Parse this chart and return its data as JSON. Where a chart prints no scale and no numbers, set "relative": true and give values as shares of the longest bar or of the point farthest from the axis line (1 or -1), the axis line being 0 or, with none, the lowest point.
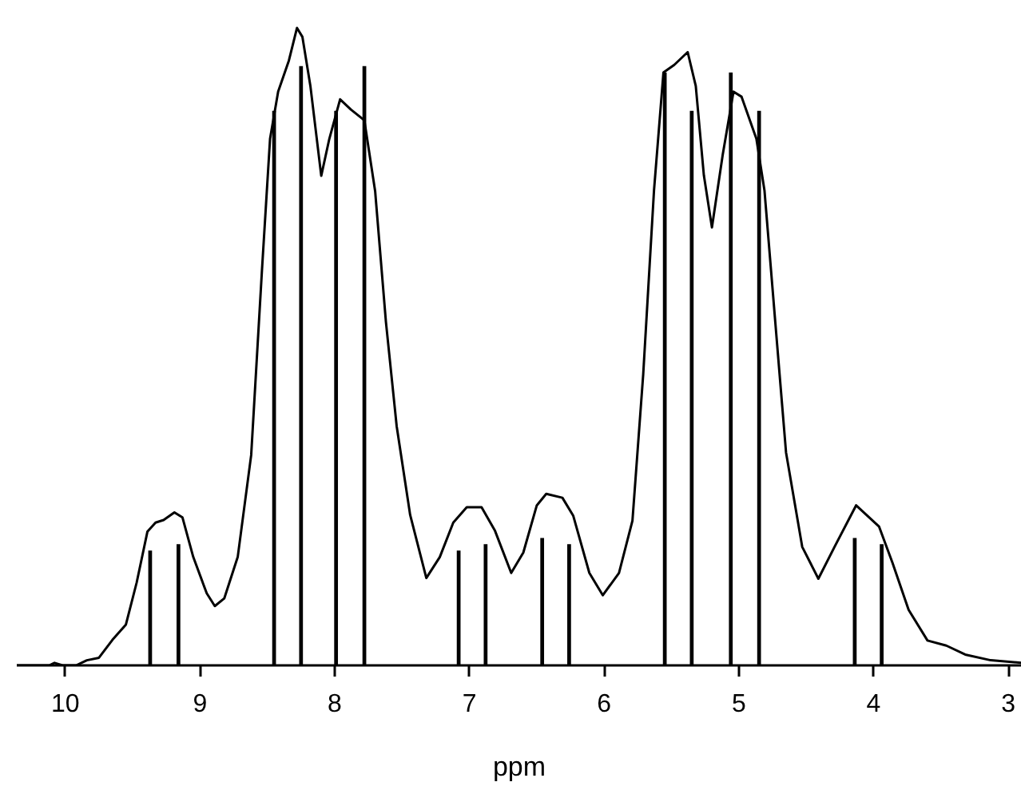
{
  "chart_data": {
    "type": "line",
    "relative": true,
    "xlabel": "ppm",
    "xlim": [
      10.36,
      2.9
    ],
    "xticks": [
      10,
      9,
      8,
      7,
      6,
      5,
      4,
      3
    ],
    "grid": false,
    "series": [
      {
        "color": "#000000",
        "x": [
          10.36,
          10.12,
          10.08,
          10.02,
          9.92,
          9.84,
          9.75,
          9.65,
          9.55,
          9.47,
          9.39,
          9.33,
          9.27,
          9.19,
          9.13,
          9.05,
          8.95,
          8.89,
          8.82,
          8.72,
          8.62,
          8.54,
          8.48,
          8.42,
          8.34,
          8.28,
          8.24,
          8.18,
          8.1,
          8.04,
          7.96,
          7.88,
          7.78,
          7.7,
          7.62,
          7.54,
          7.44,
          7.32,
          7.22,
          7.12,
          7.02,
          6.91,
          6.81,
          6.69,
          6.6,
          6.5,
          6.43,
          6.31,
          6.23,
          6.11,
          6.01,
          5.89,
          5.79,
          5.71,
          5.63,
          5.56,
          5.48,
          5.38,
          5.32,
          5.26,
          5.2,
          5.12,
          5.04,
          4.98,
          4.87,
          4.81,
          4.73,
          4.65,
          4.53,
          4.41,
          4.29,
          4.13,
          3.96,
          3.86,
          3.74,
          3.6,
          3.46,
          3.32,
          3.13,
          2.9
        ],
        "values": [
          0,
          0,
          0.004,
          0,
          0,
          0.008,
          0.012,
          0.04,
          0.064,
          0.13,
          0.21,
          0.224,
          0.228,
          0.24,
          0.232,
          0.17,
          0.113,
          0.093,
          0.105,
          0.17,
          0.33,
          0.62,
          0.826,
          0.9,
          0.949,
          1.0,
          0.986,
          0.908,
          0.768,
          0.826,
          0.888,
          0.872,
          0.855,
          0.744,
          0.539,
          0.375,
          0.236,
          0.137,
          0.17,
          0.224,
          0.248,
          0.248,
          0.211,
          0.145,
          0.177,
          0.251,
          0.269,
          0.263,
          0.235,
          0.145,
          0.11,
          0.145,
          0.227,
          0.457,
          0.745,
          0.93,
          0.942,
          0.962,
          0.909,
          0.769,
          0.687,
          0.801,
          0.9,
          0.892,
          0.826,
          0.745,
          0.539,
          0.334,
          0.186,
          0.136,
          0.186,
          0.251,
          0.218,
          0.161,
          0.087,
          0.039,
          0.031,
          0.017,
          0.008,
          0.004
        ]
      },
      {
        "type": "bar",
        "color": "#000000",
        "x": [
          9.37,
          9.16,
          8.45,
          8.25,
          7.99,
          7.78,
          7.08,
          6.88,
          6.46,
          6.26,
          5.55,
          5.35,
          5.06,
          4.85,
          4.14,
          3.94
        ],
        "values": [
          0.18,
          0.19,
          0.87,
          0.94,
          0.87,
          0.94,
          0.18,
          0.19,
          0.2,
          0.19,
          0.93,
          0.87,
          0.93,
          0.87,
          0.2,
          0.19
        ]
      }
    ]
  }
}
